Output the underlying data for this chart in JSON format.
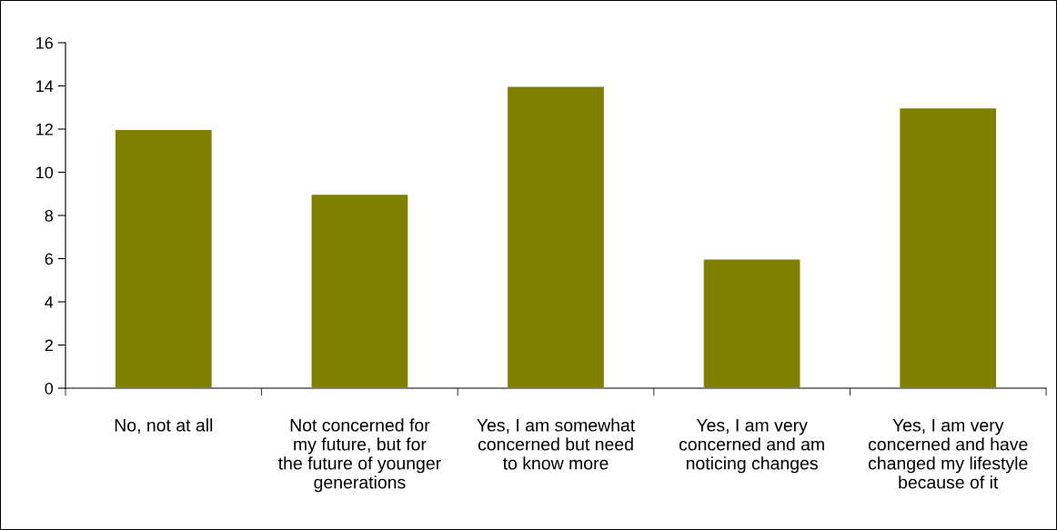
{
  "chart_data": {
    "type": "bar",
    "categories": [
      "No, not at all",
      "Not concerned for\nmy future, but for\nthe future of younger\ngenerations",
      "Yes, I am somewhat\nconcerned but need\nto know more",
      "Yes, I am very\nconcerned and am\nnoticing changes",
      "Yes, I am very\nconcerned and have\nchanged my lifestyle\nbecause of it"
    ],
    "values": [
      12,
      9,
      14,
      6,
      13
    ],
    "color": "#808000",
    "ylim": [
      0,
      16
    ],
    "yticks": [
      0,
      2,
      4,
      6,
      8,
      10,
      12,
      14,
      16
    ],
    "grid": false,
    "legend": false
  }
}
